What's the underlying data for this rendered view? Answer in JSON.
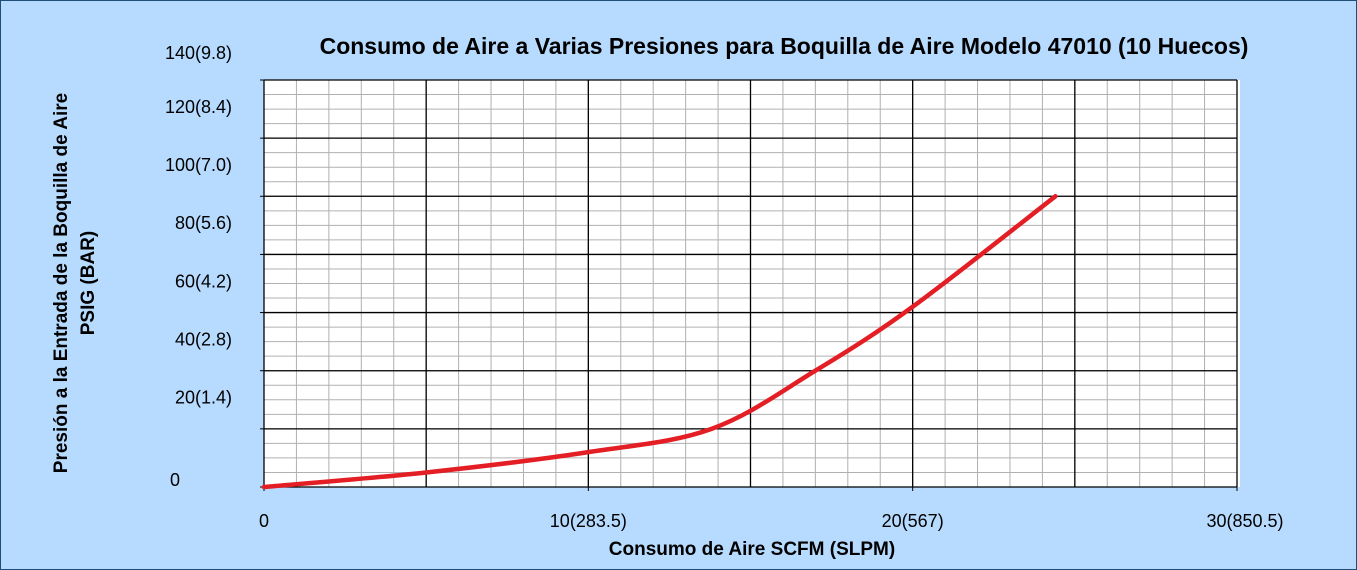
{
  "chart_data": {
    "type": "line",
    "title": "Consumo de Aire a Varias Presiones para Boquilla de Aire Modelo 47010 (10 Huecos)",
    "xlabel": "Consumo de Aire SCFM (SLPM)",
    "ylabel": [
      "Presión a la Entrada de la Boquilla de Aire",
      "PSIG (BAR)"
    ],
    "x": [
      0,
      5,
      10,
      13.8,
      17,
      20,
      24.4
    ],
    "values": [
      0,
      5,
      12,
      20,
      40,
      62,
      100
    ],
    "color": "#e31e24",
    "xlim": [
      0,
      30
    ],
    "xticks": [
      0,
      {
        "value": 10,
        "label": "10(283.5)"
      },
      {
        "value": 20,
        "label": "20(567)"
      },
      {
        "value": 30,
        "label": "30(850.5)"
      }
    ],
    "ylim": [
      0,
      140
    ],
    "yticks": [
      0,
      {
        "value": 20,
        "label": "20(1.4)"
      },
      {
        "value": 40,
        "label": "40(2.8)"
      },
      {
        "value": 60,
        "label": "60(4.2)"
      },
      {
        "value": 80,
        "label": "80(5.6)"
      },
      {
        "value": 100,
        "label": "100(7.0)"
      },
      {
        "value": 120,
        "label": "120(8.4)"
      },
      {
        "value": 140,
        "label": "140(9.8)"
      }
    ],
    "grid": true,
    "major_grid": {
      "x": 5,
      "y": 20
    },
    "minor_grid": {
      "x": 1,
      "y": 5
    }
  }
}
